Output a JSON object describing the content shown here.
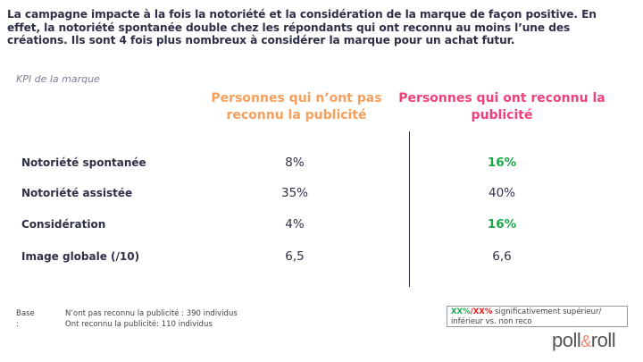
{
  "title": "La campagne impacte à la fois la notoriété et la considération de la marque de façon positive. En effet, la notoriété spontanée double chez les répondants qui ont reconnu au moins l’une des créations. Ils sont 4 fois plus nombreux à considérer la marque pour un achat futur.",
  "section_label": "KPI de la marque",
  "columns": [
    {
      "label": "Personnes qui n’ont pas reconnu la publicité",
      "color": "#f7a05c"
    },
    {
      "label": "Personnes qui ont reconnu la publicité",
      "color": "#f0427a"
    }
  ],
  "rows": [
    {
      "label": "Notoriété spontanée",
      "not_recognized": "8%",
      "recognized": "16%",
      "recognized_significance": "higher"
    },
    {
      "label": "Notoriété assistée",
      "not_recognized": "35%",
      "recognized": "40%",
      "recognized_significance": "none"
    },
    {
      "label": "Considération",
      "not_recognized": "4%",
      "recognized": "16%",
      "recognized_significance": "higher"
    },
    {
      "label": "Image globale (/10)",
      "not_recognized": "6,5",
      "recognized": "6,6",
      "recognized_significance": "none"
    }
  ],
  "base": {
    "label": "Base :",
    "line1": "N’ont pas reconnu la publicité : 390 individus",
    "line2": "Ont reconnu la publicité: 110 individus"
  },
  "legend": {
    "higher_sample": "XX%",
    "separator": "/",
    "lower_sample": "XX%",
    "text": " significativement supérieur/ inférieur vs. non reco",
    "higher_color": "#1aa84b",
    "lower_color": "#e02020"
  },
  "logo": {
    "part1": "poll",
    "amp": "&",
    "part2": "roll"
  }
}
